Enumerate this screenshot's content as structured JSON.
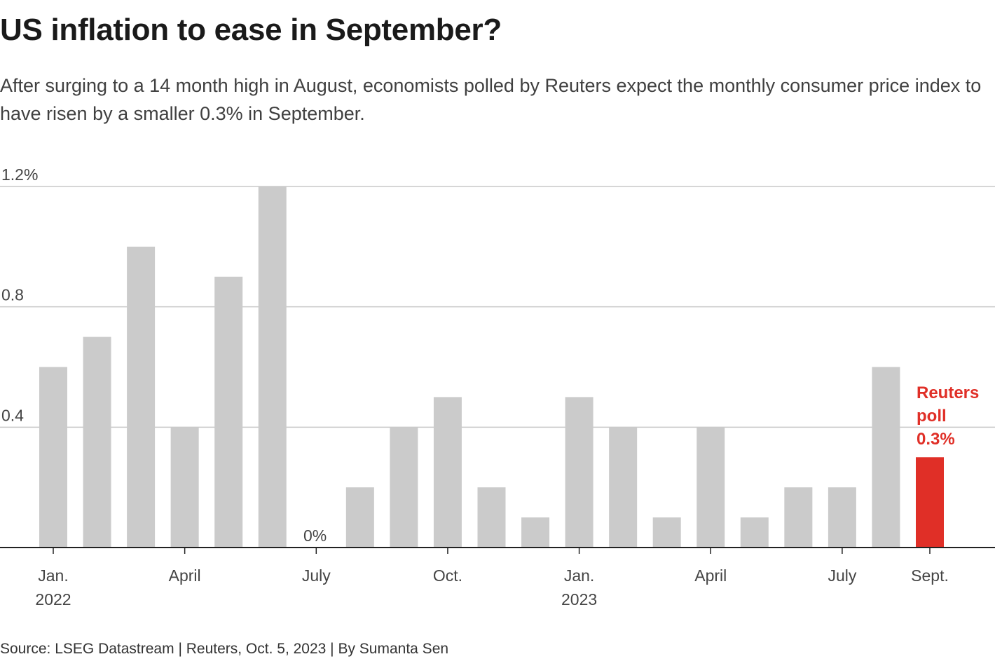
{
  "header": {
    "title": "US inflation to ease in September?",
    "subtitle": "After surging to a 14 month high in August, economists polled by Reuters expect the monthly consumer price index to have risen by a smaller 0.3% in September."
  },
  "footer": {
    "source": "Source: LSEG Datastream | Reuters, Oct. 5, 2023 | By Sumanta Sen"
  },
  "chart_data": {
    "type": "bar",
    "categories": [
      "Jan. 2022",
      "Feb. 2022",
      "Mar. 2022",
      "April 2022",
      "May 2022",
      "June 2022",
      "July 2022",
      "Aug. 2022",
      "Sept. 2022",
      "Oct. 2022",
      "Nov. 2022",
      "Dec. 2022",
      "Jan. 2023",
      "Feb. 2023",
      "Mar. 2023",
      "April 2023",
      "May 2023",
      "June 2023",
      "July 2023",
      "Aug. 2023",
      "Sept. 2023"
    ],
    "values": [
      0.6,
      0.7,
      1.0,
      0.4,
      0.9,
      1.2,
      0.0,
      0.2,
      0.4,
      0.5,
      0.2,
      0.1,
      0.5,
      0.4,
      0.1,
      0.4,
      0.1,
      0.2,
      0.2,
      0.6,
      0.3
    ],
    "highlight_index": 20,
    "colors": {
      "bar": "#cbcbcb",
      "highlight": "#e02f27",
      "grid": "#c8c8c8",
      "axis": "#222222",
      "label": "#444444"
    },
    "ylim": [
      0,
      1.2
    ],
    "yticks": [
      {
        "value": 0,
        "label": "0%"
      },
      {
        "value": 0.4,
        "label": "0.4"
      },
      {
        "value": 0.8,
        "label": "0.8"
      },
      {
        "value": 1.2,
        "label": "1.2%"
      }
    ],
    "xticks": [
      {
        "index": 0,
        "label": [
          "Jan.",
          "2022"
        ]
      },
      {
        "index": 3,
        "label": [
          "April"
        ]
      },
      {
        "index": 6,
        "label": [
          "July"
        ]
      },
      {
        "index": 9,
        "label": [
          "Oct."
        ]
      },
      {
        "index": 12,
        "label": [
          "Jan.",
          "2023"
        ]
      },
      {
        "index": 15,
        "label": [
          "April"
        ]
      },
      {
        "index": 18,
        "label": [
          "July"
        ]
      },
      {
        "index": 20,
        "label": [
          "Sept."
        ]
      }
    ],
    "annotation": {
      "index": 20,
      "lines": [
        "Reuters",
        "poll",
        "0.3%"
      ]
    },
    "grid": true,
    "legend": "none"
  }
}
